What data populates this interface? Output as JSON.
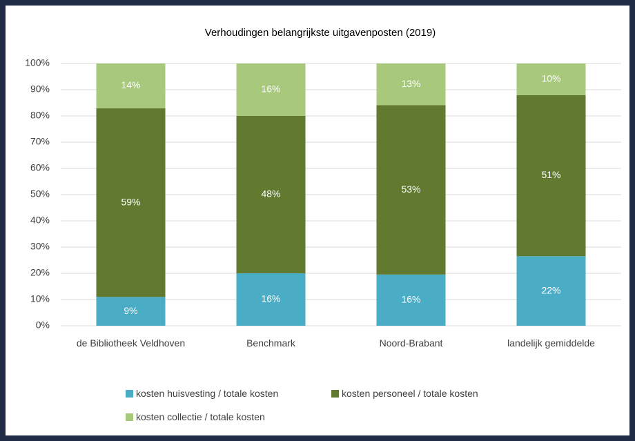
{
  "chart_data": {
    "type": "stacked_percent_bar",
    "title": "Verhoudingen belangrijkste uitgavenposten (2019)",
    "categories": [
      "de Bibliotheek Veldhoven",
      "Benchmark",
      "Noord-Brabant",
      "landelijk gemiddelde"
    ],
    "series": [
      {
        "name": "kosten huisvesting / totale kosten",
        "color": "#4bacc6",
        "values": [
          9,
          16,
          16,
          22
        ],
        "value_labels": [
          "9%",
          "16%",
          "16%",
          "22%"
        ]
      },
      {
        "name": "kosten personeel / totale kosten",
        "color": "#617a30",
        "values": [
          59,
          48,
          53,
          51
        ],
        "value_labels": [
          "59%",
          "48%",
          "53%",
          "51%"
        ]
      },
      {
        "name": "kosten collectie / totale kosten",
        "color": "#a8c97c",
        "values": [
          14,
          16,
          13,
          10
        ],
        "value_labels": [
          "14%",
          "16%",
          "13%",
          "10%"
        ]
      }
    ],
    "ylim": [
      0,
      100
    ],
    "yticks": [
      {
        "value": 0,
        "label": "0%"
      },
      {
        "value": 10,
        "label": "10%"
      },
      {
        "value": 20,
        "label": "20%"
      },
      {
        "value": 30,
        "label": "30%"
      },
      {
        "value": 40,
        "label": "40%"
      },
      {
        "value": 50,
        "label": "50%"
      },
      {
        "value": 60,
        "label": "60%"
      },
      {
        "value": 70,
        "label": "70%"
      },
      {
        "value": 80,
        "label": "80%"
      },
      {
        "value": 90,
        "label": "90%"
      },
      {
        "value": 100,
        "label": "100%"
      }
    ],
    "grid": true,
    "legend": "bottom"
  }
}
